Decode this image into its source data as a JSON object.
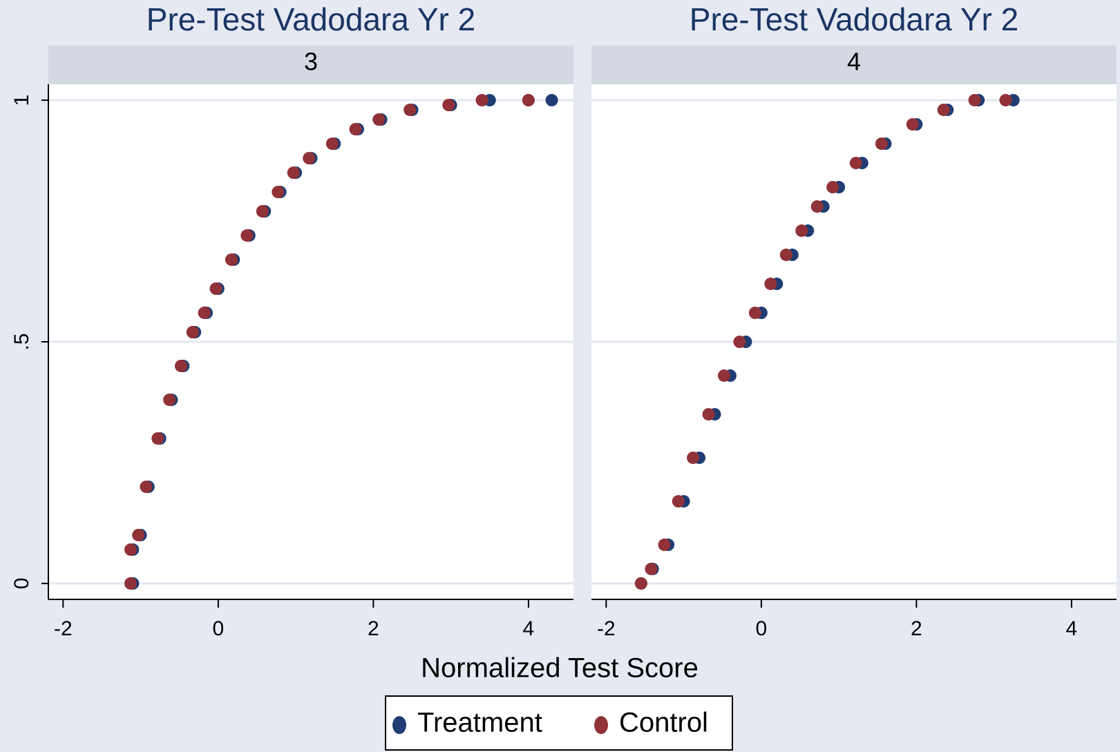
{
  "chart_data": [
    {
      "type": "scatter",
      "title": "Pre-Test Vadodara Yr 2",
      "subtitle": "3",
      "x_label": "Normalized Test Score",
      "xlim": [
        -2.19,
        4.58
      ],
      "xticks": [
        -2,
        0,
        2,
        4
      ],
      "ylim": [
        -0.033,
        1.033
      ],
      "yticks": [
        0,
        {
          "value": 0.5,
          "label": ".5"
        },
        1
      ],
      "grid": true,
      "series": [
        {
          "name": "Treatment",
          "color": "#1f3d73",
          "x": [
            -1.1,
            -1.1,
            -1.0,
            -0.9,
            -0.75,
            -0.6,
            -0.45,
            -0.3,
            -0.15,
            0,
            0.2,
            0.4,
            0.6,
            0.8,
            1.0,
            1.2,
            1.5,
            1.8,
            2.1,
            2.5,
            3.0,
            3.5,
            4.0,
            4.3
          ],
          "values": [
            0.0,
            0.07,
            0.1,
            0.2,
            0.3,
            0.38,
            0.45,
            0.52,
            0.56,
            0.61,
            0.67,
            0.72,
            0.77,
            0.81,
            0.85,
            0.88,
            0.91,
            0.94,
            0.96,
            0.98,
            0.99,
            1.0,
            1.0,
            1.0
          ]
        },
        {
          "name": "Control",
          "color": "#903238",
          "x": [
            -1.13,
            -1.13,
            -1.03,
            -0.93,
            -0.78,
            -0.63,
            -0.48,
            -0.33,
            -0.18,
            -0.03,
            0.17,
            0.37,
            0.57,
            0.77,
            0.97,
            1.17,
            1.47,
            1.77,
            2.07,
            2.47,
            2.97,
            3.4,
            4.0
          ],
          "values": [
            0.0,
            0.07,
            0.1,
            0.2,
            0.3,
            0.38,
            0.45,
            0.52,
            0.56,
            0.61,
            0.67,
            0.72,
            0.77,
            0.81,
            0.85,
            0.88,
            0.91,
            0.94,
            0.96,
            0.98,
            0.99,
            1.0,
            1.0
          ]
        }
      ]
    },
    {
      "type": "scatter",
      "title": "Pre-Test Vadodara Yr 2",
      "subtitle": "4",
      "xlim": [
        -2.19,
        4.58
      ],
      "xticks": [
        -2,
        0,
        2,
        4
      ],
      "ylim": [
        -0.033,
        1.033
      ],
      "grid": true,
      "series": [
        {
          "color": "#1f3d73",
          "x": [
            -1.55,
            -1.4,
            -1.2,
            -1.0,
            -0.8,
            -0.6,
            -0.4,
            -0.2,
            0,
            0.2,
            0.4,
            0.6,
            0.8,
            1.0,
            1.3,
            1.6,
            2.0,
            2.4,
            2.8,
            3.25
          ],
          "values": [
            0.0,
            0.03,
            0.08,
            0.17,
            0.26,
            0.35,
            0.43,
            0.5,
            0.56,
            0.62,
            0.68,
            0.73,
            0.78,
            0.82,
            0.87,
            0.91,
            0.95,
            0.98,
            1.0,
            1.0
          ]
        },
        {
          "color": "#903238",
          "x": [
            -1.55,
            -1.42,
            -1.25,
            -1.07,
            -0.88,
            -0.68,
            -0.48,
            -0.28,
            -0.08,
            0.12,
            0.32,
            0.52,
            0.72,
            0.92,
            1.22,
            1.55,
            1.95,
            2.35,
            2.75,
            3.15
          ],
          "values": [
            0.0,
            0.03,
            0.08,
            0.17,
            0.26,
            0.35,
            0.43,
            0.5,
            0.56,
            0.62,
            0.68,
            0.73,
            0.78,
            0.82,
            0.87,
            0.91,
            0.95,
            0.98,
            1.0,
            1.0
          ]
        }
      ]
    }
  ]
}
